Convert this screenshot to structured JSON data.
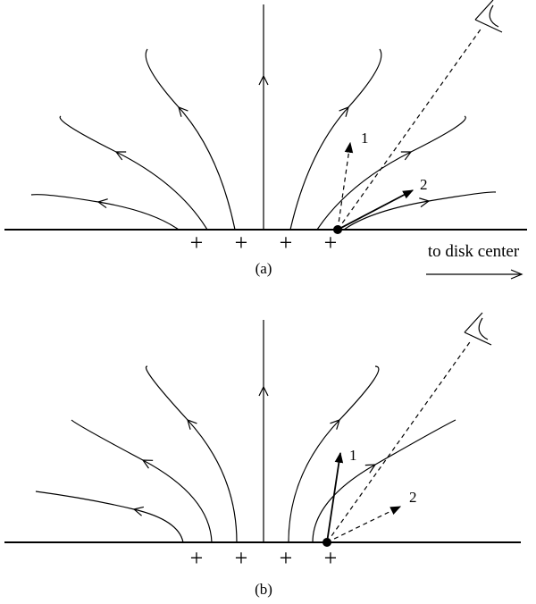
{
  "panels": [
    {
      "label": "(a)",
      "charges": [
        "+",
        "+",
        "+",
        "+"
      ],
      "rays": [
        {
          "label": "1"
        },
        {
          "label": "2"
        }
      ]
    },
    {
      "label": "(b)",
      "charges": [
        "+",
        "+",
        "+",
        "+"
      ],
      "rays": [
        {
          "label": "1"
        },
        {
          "label": "2"
        }
      ]
    }
  ],
  "direction_label": "to disk center"
}
